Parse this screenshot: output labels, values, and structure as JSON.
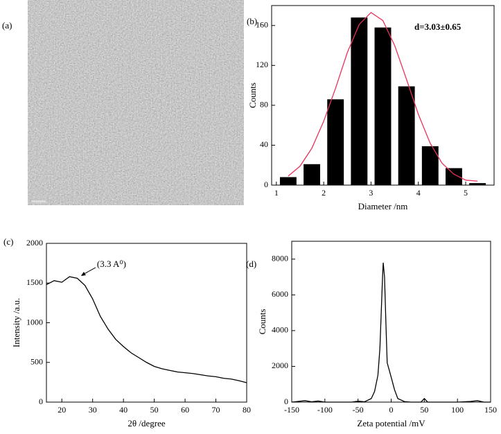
{
  "image_panel": {
    "label": "(a)"
  },
  "chart_data": [
    {
      "type": "bar",
      "label": "(b)",
      "x_label": "Diameter /nm",
      "y_label": "Counts",
      "annotation": "d=3.03±0.65",
      "xlim": [
        0.9,
        5.6
      ],
      "xticks": [
        1,
        2,
        3,
        4,
        5
      ],
      "ylim": [
        0,
        180
      ],
      "yticks": [
        0,
        40,
        80,
        120,
        160
      ],
      "bar_width": 0.35,
      "series": [
        {
          "type": "bar",
          "color": "#000000",
          "x": [
            1.25,
            1.75,
            2.25,
            2.75,
            3.25,
            3.75,
            4.25,
            4.75,
            5.25
          ],
          "values": [
            8,
            21,
            86,
            168,
            158,
            99,
            39,
            17,
            2
          ]
        },
        {
          "type": "line",
          "color": "#e8335a",
          "x": [
            1.25,
            1.5,
            1.75,
            2.0,
            2.25,
            2.5,
            2.75,
            3.0,
            3.25,
            3.5,
            3.75,
            4.0,
            4.25,
            4.5,
            4.75,
            5.0,
            5.25
          ],
          "values": [
            9,
            19,
            37,
            64,
            97,
            133,
            161,
            173,
            165,
            140,
            106,
            71,
            42,
            22,
            11,
            5,
            4
          ]
        }
      ]
    },
    {
      "type": "line",
      "label": "(c)",
      "x_label": "2θ /degree",
      "y_label": "Intensity /a.u.",
      "annotation": "(3.3 A⁰)",
      "annotation_x": 26,
      "annotation_y": 1590,
      "xlim": [
        15,
        80
      ],
      "xticks": [
        20,
        30,
        40,
        50,
        60,
        70,
        80
      ],
      "ylim": [
        0,
        2000
      ],
      "yticks": [
        0,
        500,
        1000,
        1500,
        2000
      ],
      "series": [
        {
          "type": "line",
          "color": "#000000",
          "x": [
            15,
            17.5,
            20,
            22.5,
            25,
            27.5,
            30,
            32.5,
            35,
            37.5,
            40,
            42.5,
            45,
            47.5,
            50,
            52.5,
            55,
            57.5,
            60,
            62.5,
            65,
            67.5,
            70,
            72.5,
            75,
            77.5,
            80
          ],
          "values": [
            1480,
            1530,
            1510,
            1580,
            1560,
            1470,
            1300,
            1080,
            920,
            790,
            700,
            620,
            560,
            500,
            450,
            420,
            400,
            380,
            370,
            360,
            345,
            330,
            320,
            300,
            290,
            270,
            245
          ]
        }
      ]
    },
    {
      "type": "line",
      "label": "(d)",
      "x_label": "Zeta potential /mV",
      "y_label": "Counts",
      "xlim": [
        -150,
        150
      ],
      "xticks": [
        -150,
        -100,
        -50,
        0,
        50,
        100,
        150
      ],
      "ylim": [
        0,
        9000
      ],
      "yticks": [
        0,
        2000,
        4000,
        6000,
        8000
      ],
      "series": [
        {
          "type": "line",
          "color": "#000000",
          "x": [
            -150,
            -130,
            -120,
            -110,
            -100,
            -60,
            -50,
            -40,
            -30,
            -25,
            -20,
            -17,
            -15,
            -13,
            -12,
            -10,
            -8,
            -6,
            -3,
            0,
            5,
            10,
            20,
            30,
            45,
            50,
            55,
            100,
            120,
            130,
            140,
            150
          ],
          "values": [
            0,
            80,
            20,
            60,
            0,
            0,
            50,
            20,
            200,
            600,
            1500,
            3000,
            5000,
            7000,
            7800,
            7000,
            4500,
            2200,
            1800,
            1400,
            700,
            200,
            30,
            0,
            0,
            200,
            0,
            0,
            40,
            80,
            0,
            0
          ]
        }
      ]
    }
  ]
}
